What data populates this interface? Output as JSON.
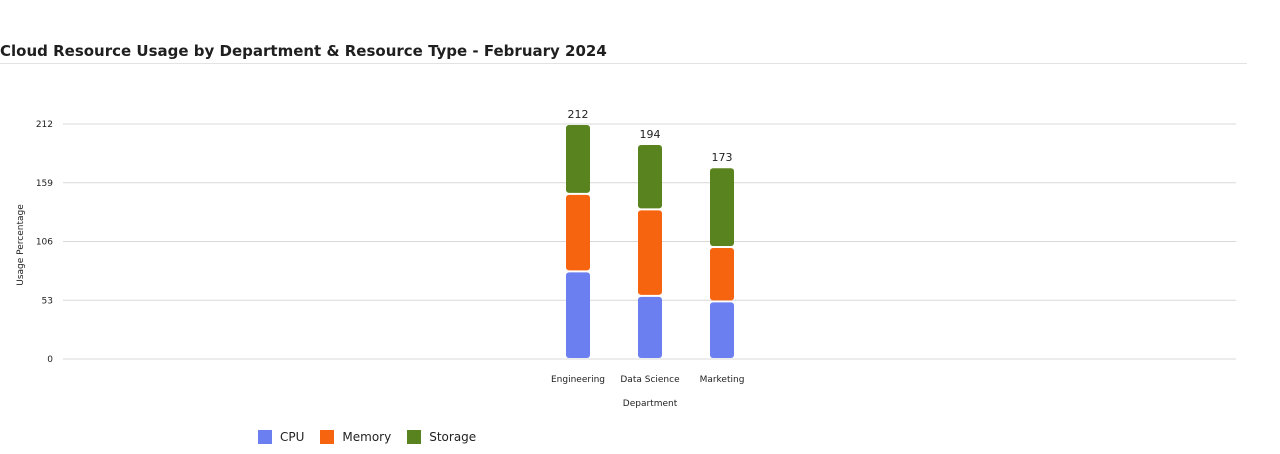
{
  "title": "Cloud Resource Usage by Department & Resource Type - February 2024",
  "chart_data": {
    "type": "bar",
    "stacked": true,
    "title": "Cloud Resource Usage by Department & Resource Type - February 2024",
    "xlabel": "Department",
    "ylabel": "Usage Percentage",
    "categories": [
      "Engineering",
      "Data Science",
      "Marketing"
    ],
    "series": [
      {
        "name": "CPU",
        "color": "#6b7ff0",
        "values": [
          79,
          57,
          52
        ]
      },
      {
        "name": "Memory",
        "color": "#f6640f",
        "values": [
          70,
          78,
          49
        ]
      },
      {
        "name": "Storage",
        "color": "#58831e",
        "values": [
          63,
          59,
          72
        ]
      }
    ],
    "totals": [
      "212",
      "194",
      "173"
    ],
    "yticks": [
      "0",
      "53",
      "106",
      "159",
      "212"
    ],
    "ylim": [
      0,
      212
    ],
    "grid": true,
    "legend_position": "bottom-left"
  }
}
